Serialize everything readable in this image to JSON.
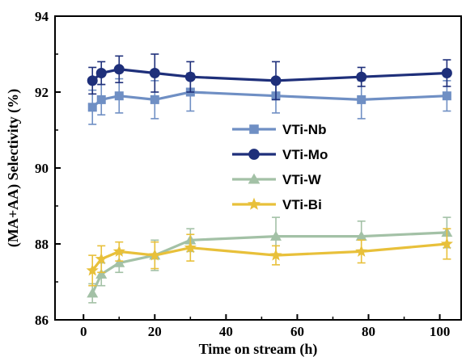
{
  "chart_data": {
    "type": "line",
    "xlabel": "Time on stream (h)",
    "ylabel": "(MA+AA) Selectivity (%)",
    "xlim": [
      -8,
      106
    ],
    "ylim": [
      86,
      94
    ],
    "xticks": [
      "0",
      "20",
      "40",
      "60",
      "80",
      "100"
    ],
    "yticks": [
      "86",
      "88",
      "90",
      "92",
      "94"
    ],
    "grid": false,
    "legend_position": "center-right",
    "series": [
      {
        "name": "VTi-Nb",
        "color": "#6f8fc4",
        "marker": "square",
        "x": [
          2.5,
          5,
          10,
          20,
          30,
          54,
          78,
          102
        ],
        "y": [
          91.6,
          91.8,
          91.9,
          91.8,
          92.0,
          91.9,
          91.8,
          91.9
        ],
        "err": [
          0.45,
          0.4,
          0.45,
          0.5,
          0.5,
          0.45,
          0.5,
          0.4
        ]
      },
      {
        "name": "VTi-Mo",
        "color": "#1e2f7a",
        "marker": "circle",
        "x": [
          2.5,
          5,
          10,
          20,
          30,
          54,
          78,
          102
        ],
        "y": [
          92.3,
          92.5,
          92.6,
          92.5,
          92.4,
          92.3,
          92.4,
          92.5
        ],
        "err": [
          0.35,
          0.3,
          0.35,
          0.5,
          0.4,
          0.5,
          0.25,
          0.35
        ]
      },
      {
        "name": "VTi-W",
        "color": "#a3c1a6",
        "marker": "triangle",
        "x": [
          2.5,
          5,
          10,
          20,
          30,
          54,
          78,
          102
        ],
        "y": [
          86.7,
          87.2,
          87.5,
          87.7,
          88.1,
          88.2,
          88.2,
          88.3
        ],
        "err": [
          0.25,
          0.3,
          0.25,
          0.4,
          0.3,
          0.5,
          0.4,
          0.4
        ]
      },
      {
        "name": "VTi-Bi",
        "color": "#e8c03a",
        "marker": "star",
        "x": [
          2.5,
          5,
          10,
          20,
          30,
          54,
          78,
          102
        ],
        "y": [
          87.3,
          87.6,
          87.8,
          87.7,
          87.9,
          87.7,
          87.8,
          88.0
        ],
        "err": [
          0.4,
          0.35,
          0.25,
          0.35,
          0.35,
          0.25,
          0.3,
          0.4
        ]
      }
    ]
  }
}
